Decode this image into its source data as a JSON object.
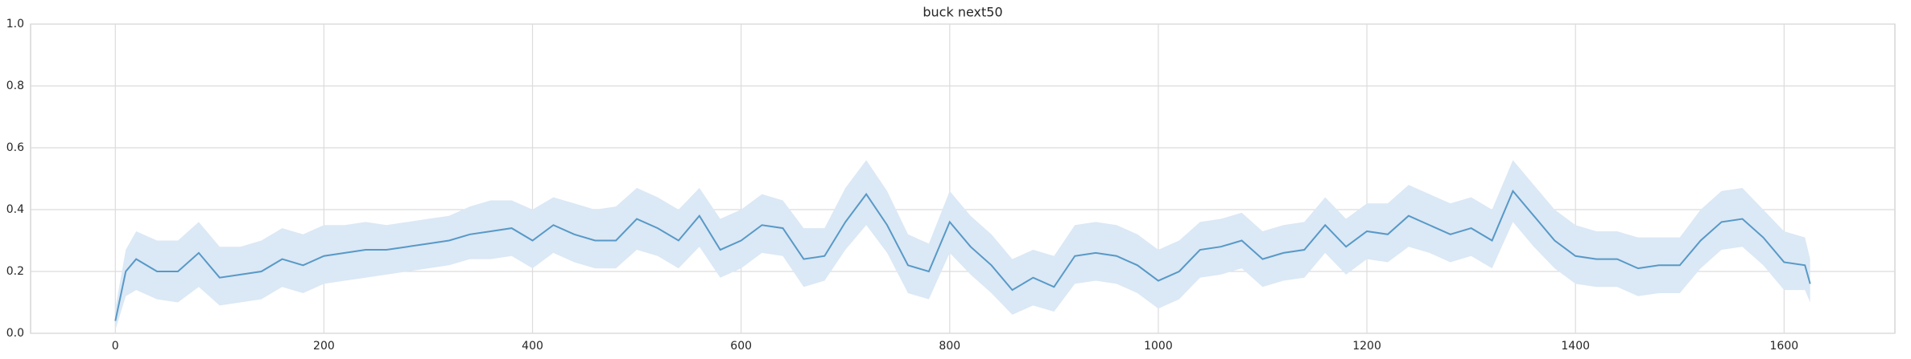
{
  "chart_data": {
    "type": "line",
    "title": "buck next50",
    "x": [
      0,
      10,
      20,
      40,
      60,
      80,
      100,
      120,
      140,
      160,
      180,
      200,
      220,
      240,
      260,
      280,
      300,
      320,
      340,
      360,
      380,
      400,
      420,
      440,
      460,
      480,
      500,
      520,
      540,
      560,
      580,
      600,
      620,
      640,
      660,
      680,
      700,
      720,
      740,
      760,
      780,
      800,
      820,
      840,
      860,
      880,
      900,
      920,
      940,
      960,
      980,
      1000,
      1020,
      1040,
      1060,
      1080,
      1100,
      1120,
      1140,
      1160,
      1180,
      1200,
      1220,
      1240,
      1260,
      1280,
      1300,
      1320,
      1340,
      1360,
      1380,
      1400,
      1420,
      1440,
      1460,
      1480,
      1500,
      1520,
      1540,
      1560,
      1580,
      1600,
      1620,
      1625
    ],
    "series": [
      {
        "color": "#5799c7",
        "band_color": "#dbe8f5",
        "values": [
          0.04,
          0.2,
          0.24,
          0.2,
          0.2,
          0.26,
          0.18,
          0.19,
          0.2,
          0.24,
          0.22,
          0.25,
          0.26,
          0.27,
          0.27,
          0.28,
          0.29,
          0.3,
          0.32,
          0.33,
          0.34,
          0.3,
          0.35,
          0.32,
          0.3,
          0.3,
          0.37,
          0.34,
          0.3,
          0.38,
          0.27,
          0.3,
          0.35,
          0.34,
          0.24,
          0.25,
          0.36,
          0.45,
          0.35,
          0.22,
          0.2,
          0.36,
          0.28,
          0.22,
          0.14,
          0.18,
          0.15,
          0.25,
          0.26,
          0.25,
          0.22,
          0.17,
          0.2,
          0.27,
          0.28,
          0.3,
          0.24,
          0.26,
          0.27,
          0.35,
          0.28,
          0.33,
          0.32,
          0.38,
          0.35,
          0.32,
          0.34,
          0.3,
          0.46,
          0.38,
          0.3,
          0.25,
          0.24,
          0.24,
          0.21,
          0.22,
          0.22,
          0.3,
          0.36,
          0.37,
          0.31,
          0.23,
          0.22,
          0.16
        ],
        "lower": [
          0.01,
          0.12,
          0.14,
          0.11,
          0.1,
          0.15,
          0.09,
          0.1,
          0.11,
          0.15,
          0.13,
          0.16,
          0.17,
          0.18,
          0.19,
          0.2,
          0.21,
          0.22,
          0.24,
          0.24,
          0.25,
          0.21,
          0.26,
          0.23,
          0.21,
          0.21,
          0.27,
          0.25,
          0.21,
          0.28,
          0.18,
          0.21,
          0.26,
          0.25,
          0.15,
          0.17,
          0.27,
          0.35,
          0.26,
          0.13,
          0.11,
          0.26,
          0.19,
          0.13,
          0.06,
          0.09,
          0.07,
          0.16,
          0.17,
          0.16,
          0.13,
          0.08,
          0.11,
          0.18,
          0.19,
          0.21,
          0.15,
          0.17,
          0.18,
          0.26,
          0.19,
          0.24,
          0.23,
          0.28,
          0.26,
          0.23,
          0.25,
          0.21,
          0.36,
          0.28,
          0.21,
          0.16,
          0.15,
          0.15,
          0.12,
          0.13,
          0.13,
          0.21,
          0.27,
          0.28,
          0.22,
          0.14,
          0.14,
          0.1
        ],
        "upper": [
          0.08,
          0.27,
          0.33,
          0.3,
          0.3,
          0.36,
          0.28,
          0.28,
          0.3,
          0.34,
          0.32,
          0.35,
          0.35,
          0.36,
          0.35,
          0.36,
          0.37,
          0.38,
          0.41,
          0.43,
          0.43,
          0.4,
          0.44,
          0.42,
          0.4,
          0.41,
          0.47,
          0.44,
          0.4,
          0.47,
          0.37,
          0.4,
          0.45,
          0.43,
          0.34,
          0.34,
          0.47,
          0.56,
          0.46,
          0.32,
          0.29,
          0.46,
          0.38,
          0.32,
          0.24,
          0.27,
          0.25,
          0.35,
          0.36,
          0.35,
          0.32,
          0.27,
          0.3,
          0.36,
          0.37,
          0.39,
          0.33,
          0.35,
          0.36,
          0.44,
          0.37,
          0.42,
          0.42,
          0.48,
          0.45,
          0.42,
          0.44,
          0.4,
          0.56,
          0.48,
          0.4,
          0.35,
          0.33,
          0.33,
          0.31,
          0.31,
          0.31,
          0.4,
          0.46,
          0.47,
          0.4,
          0.33,
          0.31,
          0.24
        ]
      }
    ],
    "xlim": [
      -81.25,
      1706.25
    ],
    "ylim": [
      0,
      1
    ],
    "xticks": [
      0,
      200,
      400,
      600,
      800,
      1000,
      1200,
      1400,
      1600
    ],
    "yticks": [
      {
        "value": 0,
        "label": "0.0"
      },
      {
        "value": 0.2,
        "label": "0.2"
      },
      {
        "value": 0.4,
        "label": "0.4"
      },
      {
        "value": 0.6,
        "label": "0.6"
      },
      {
        "value": 0.8,
        "label": "0.8"
      },
      {
        "value": 1,
        "label": "1.0"
      }
    ],
    "grid": true
  }
}
